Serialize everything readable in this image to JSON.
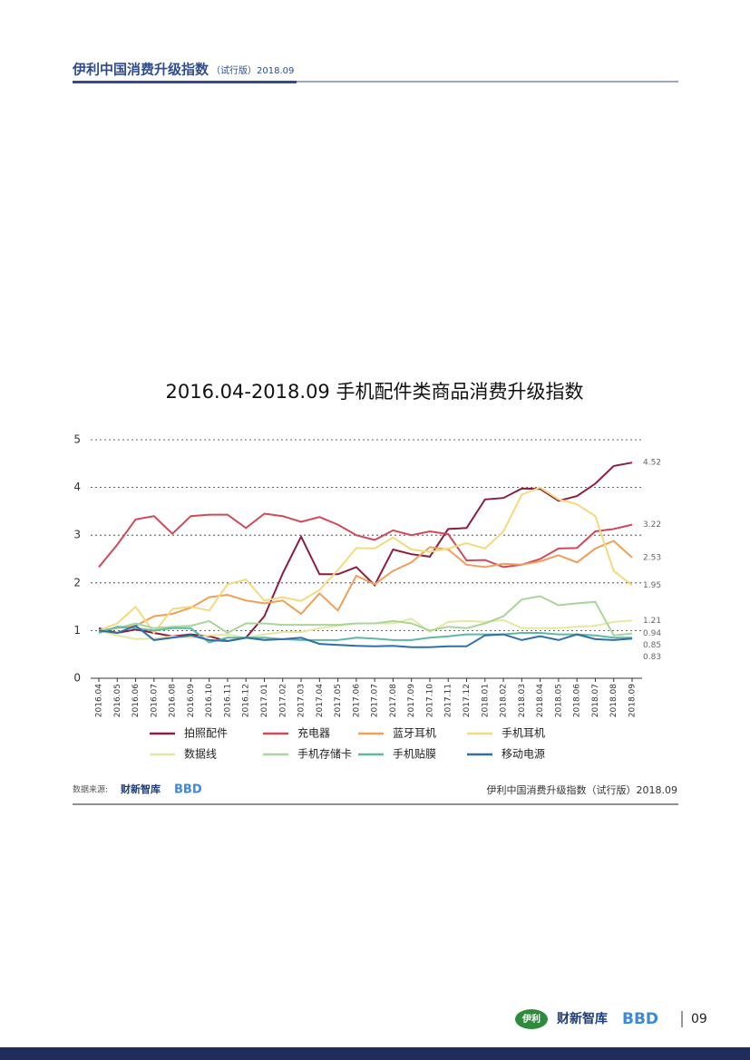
{
  "header": {
    "title": "伊利中国消费升级指数",
    "subtitle": "（试行版）2018.09"
  },
  "chart_data": {
    "type": "line",
    "title": "2016.04-2018.09 手机配件类商品消费升级指数",
    "categories": [
      "2016.04",
      "2016.05",
      "2016.06",
      "2016.07",
      "2016.08",
      "2016.09",
      "2016.10",
      "2016.11",
      "2016.12",
      "2017.01",
      "2017.02",
      "2017.03",
      "2017.04",
      "2017.05",
      "2017.06",
      "2017.07",
      "2017.08",
      "2017.09",
      "2017.10",
      "2017.11",
      "2017.12",
      "2018.01",
      "2018.02",
      "2018.03",
      "2018.04",
      "2018.05",
      "2018.06",
      "2018.07",
      "2018.08",
      "2018.09"
    ],
    "ylim": [
      0,
      5
    ],
    "yticks": [
      0,
      1,
      2,
      3,
      4,
      5
    ],
    "grid": true,
    "series": [
      {
        "name": "拍照配件",
        "color": "#8b1e3f",
        "values": [
          1.05,
          0.95,
          1.02,
          0.95,
          0.88,
          0.92,
          0.88,
          0.78,
          0.85,
          1.3,
          2.2,
          2.97,
          2.18,
          2.18,
          2.33,
          1.95,
          2.7,
          2.6,
          2.55,
          3.13,
          3.15,
          3.75,
          3.78,
          3.98,
          3.97,
          3.72,
          3.82,
          4.08,
          4.45,
          4.52
        ]
      },
      {
        "name": "充电器",
        "color": "#d0485a",
        "values": [
          2.33,
          2.8,
          3.33,
          3.4,
          3.03,
          3.4,
          3.43,
          3.43,
          3.15,
          3.45,
          3.4,
          3.28,
          3.38,
          3.22,
          3.0,
          2.9,
          3.1,
          3.0,
          3.08,
          3.02,
          2.47,
          2.48,
          2.33,
          2.38,
          2.5,
          2.72,
          2.73,
          3.08,
          3.13,
          3.22
        ]
      },
      {
        "name": "蓝牙耳机",
        "color": "#eea05a",
        "values": [
          1.0,
          1.05,
          1.1,
          1.3,
          1.35,
          1.48,
          1.7,
          1.75,
          1.63,
          1.57,
          1.63,
          1.35,
          1.78,
          1.42,
          2.15,
          1.97,
          2.25,
          2.43,
          2.75,
          2.7,
          2.38,
          2.33,
          2.4,
          2.38,
          2.45,
          2.58,
          2.43,
          2.72,
          2.88,
          2.53
        ]
      },
      {
        "name": "手机耳机",
        "color": "#f3d97f",
        "values": [
          1.0,
          1.15,
          1.5,
          0.95,
          1.45,
          1.5,
          1.42,
          1.97,
          2.07,
          1.63,
          1.7,
          1.62,
          1.85,
          2.27,
          2.73,
          2.72,
          2.95,
          2.7,
          2.65,
          2.72,
          2.83,
          2.72,
          3.08,
          3.85,
          4.0,
          3.75,
          3.65,
          3.4,
          2.25,
          1.95
        ]
      },
      {
        "name": "数据线",
        "color": "#e4e8a0",
        "values": [
          1.0,
          0.9,
          0.82,
          0.83,
          0.88,
          0.85,
          0.9,
          0.92,
          0.85,
          0.92,
          0.97,
          0.97,
          1.05,
          1.1,
          1.15,
          1.15,
          1.15,
          1.25,
          0.97,
          1.18,
          1.2,
          1.18,
          1.22,
          1.05,
          1.05,
          1.05,
          1.08,
          1.1,
          1.18,
          1.21
        ]
      },
      {
        "name": "手机存储卡",
        "color": "#a9d49a",
        "values": [
          1.0,
          1.05,
          1.15,
          1.05,
          1.08,
          1.1,
          1.2,
          0.95,
          1.15,
          1.15,
          1.12,
          1.12,
          1.12,
          1.12,
          1.15,
          1.15,
          1.2,
          1.15,
          1.0,
          1.08,
          1.05,
          1.15,
          1.3,
          1.65,
          1.72,
          1.53,
          1.57,
          1.6,
          0.9,
          0.94
        ]
      },
      {
        "name": "手机贴膜",
        "color": "#5fb8a0",
        "values": [
          0.95,
          1.08,
          1.05,
          1.0,
          1.05,
          1.05,
          0.75,
          0.85,
          0.85,
          0.85,
          0.82,
          0.8,
          0.8,
          0.8,
          0.85,
          0.83,
          0.8,
          0.8,
          0.85,
          0.88,
          0.92,
          0.92,
          0.92,
          0.95,
          0.95,
          0.92,
          0.92,
          0.9,
          0.85,
          0.85
        ]
      },
      {
        "name": "移动电源",
        "color": "#2f6fa8",
        "values": [
          1.0,
          0.95,
          1.1,
          0.8,
          0.85,
          0.9,
          0.8,
          0.78,
          0.85,
          0.8,
          0.82,
          0.85,
          0.72,
          0.7,
          0.68,
          0.67,
          0.68,
          0.65,
          0.65,
          0.67,
          0.67,
          0.9,
          0.92,
          0.8,
          0.88,
          0.8,
          0.92,
          0.82,
          0.8,
          0.83
        ]
      }
    ]
  },
  "footer": {
    "source_label": "数据来源:",
    "source_logo": "财新智库",
    "source_logo_2": "BBD",
    "note": "伊利中国消费升级指数（试行版）2018.09"
  },
  "bottom": {
    "logo_1": "伊利",
    "logo_2": "财新智库",
    "logo_3": "BBD",
    "page": "09"
  }
}
